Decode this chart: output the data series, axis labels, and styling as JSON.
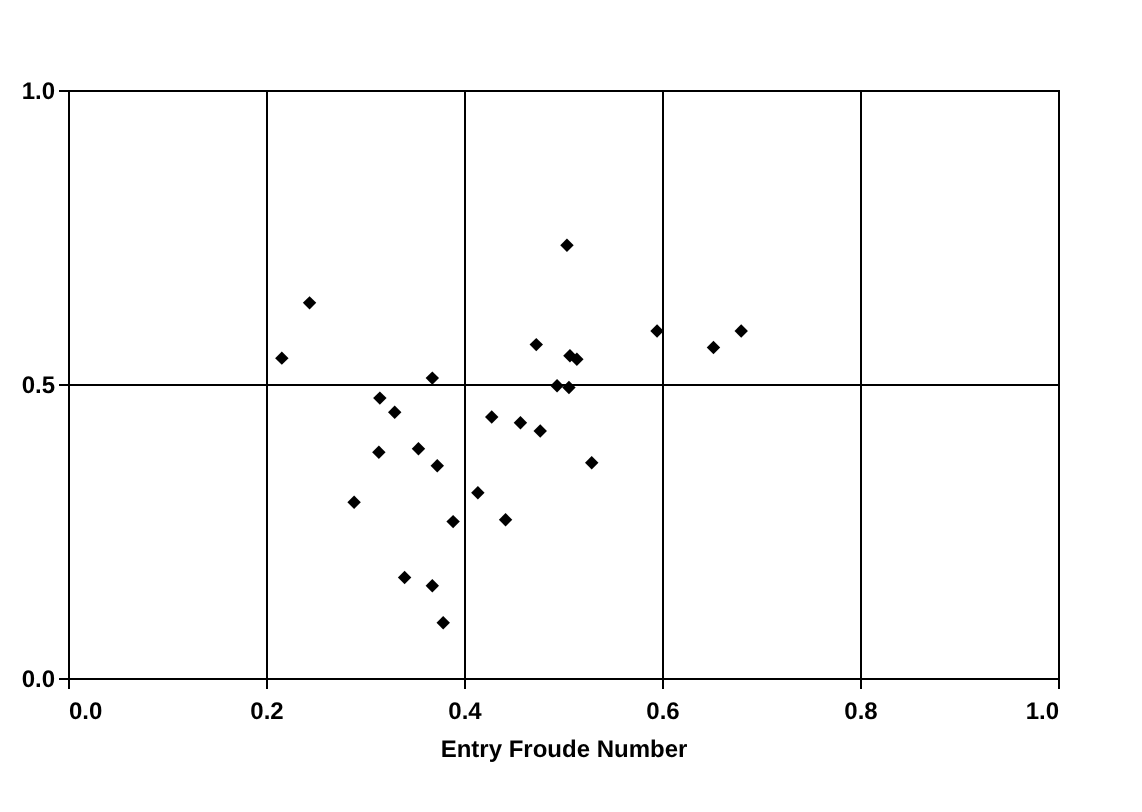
{
  "chart_data": {
    "type": "scatter",
    "xlabel": "Entry Froude Number",
    "x": [
      0.216,
      0.244,
      0.289,
      0.314,
      0.315,
      0.33,
      0.34,
      0.354,
      0.368,
      0.368,
      0.373,
      0.379,
      0.389,
      0.414,
      0.428,
      0.442,
      0.457,
      0.473,
      0.477,
      0.494,
      0.504,
      0.506,
      0.507,
      0.514,
      0.529,
      0.595,
      0.652,
      0.68
    ],
    "values": [
      0.544,
      0.638,
      0.299,
      0.384,
      0.476,
      0.452,
      0.171,
      0.39,
      0.51,
      0.157,
      0.361,
      0.094,
      0.266,
      0.315,
      0.444,
      0.269,
      0.434,
      0.567,
      0.42,
      0.497,
      0.736,
      0.494,
      0.548,
      0.542,
      0.366,
      0.59,
      0.562,
      0.59
    ],
    "color": "#000000",
    "marker": "diamond",
    "xlim": [
      0,
      1
    ],
    "xticks": [
      {
        "value": 0,
        "label": "0.0"
      },
      0.2,
      0.4,
      0.6,
      0.8,
      {
        "value": 1,
        "label": "1.0"
      }
    ],
    "ylim": [
      0,
      1
    ],
    "yticks": [
      {
        "value": 0,
        "label": "0.0"
      },
      0.5,
      {
        "value": 1,
        "label": "1.0"
      }
    ],
    "grid": true
  }
}
